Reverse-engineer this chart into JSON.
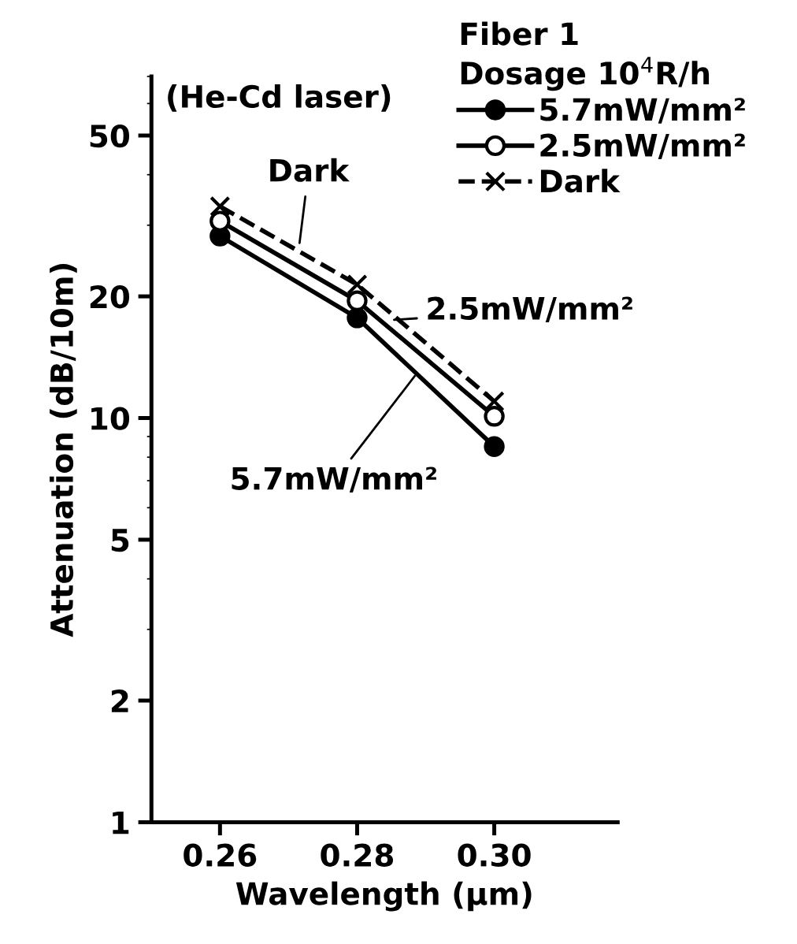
{
  "chart_data": {
    "type": "line",
    "xlabel": "Wavelength (μm)",
    "ylabel": "Attenuation (dB/10m)",
    "x": [
      0.26,
      0.28,
      0.3
    ],
    "series": [
      {
        "name": "5.7mW/mm²",
        "color": "#000000",
        "values": [
          28.2,
          17.7,
          8.5
        ],
        "marker": "circle",
        "line_style": "solid"
      },
      {
        "name": "2.5mW/mm²",
        "color": "#000000",
        "values": [
          30.7,
          19.5,
          10.1
        ],
        "marker": "circle",
        "line_style": "solid"
      },
      {
        "name": "Dark",
        "color": "#000000",
        "values": [
          33.4,
          21.4,
          11
        ],
        "marker": "cross",
        "line_style": "dashed"
      }
    ],
    "log": "y",
    "xlim": [
      0.25,
      0.318
    ],
    "xticks": [
      {
        "value": 0.26,
        "label": "0.26"
      },
      {
        "value": 0.28,
        "label": "0.28"
      },
      {
        "value": 0.3,
        "label": "0.30"
      }
    ],
    "ylim": [
      1,
      70
    ],
    "yticks": [
      1,
      2,
      5,
      10,
      20,
      50
    ],
    "grid": false,
    "legend": "top right",
    "legend_title": "Fiber 1\nDosage 10$^{4}$R/h",
    "annotations": [
      "(He-Cd laser)",
      {
        "text": "Dark",
        "x": 0.2716,
        "y": 27.1
      },
      {
        "text": "2.5mW/mm²",
        "x": 0.2854,
        "y": 17.5
      },
      {
        "text": "5.7mW/mm²",
        "x": 0.2884,
        "y": 12.7
      }
    ]
  }
}
